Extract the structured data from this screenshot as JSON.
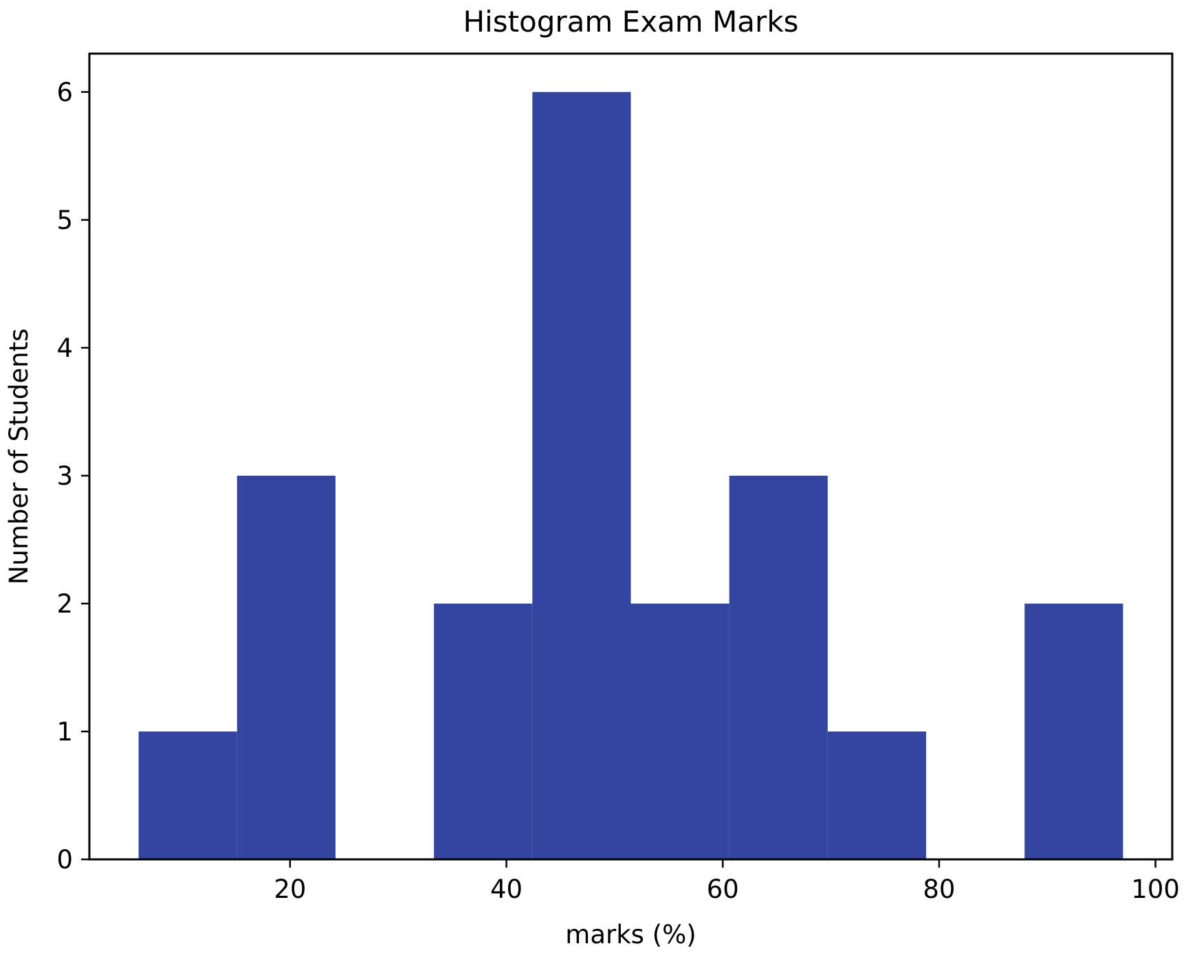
{
  "chart_data": {
    "type": "bar",
    "subtype": "histogram",
    "title": "Histogram Exam Marks",
    "xlabel": "marks (%)",
    "ylabel": "Number of Students",
    "bins": [
      {
        "start": 6.0,
        "end": 15.1,
        "count": 1
      },
      {
        "start": 15.1,
        "end": 24.2,
        "count": 3
      },
      {
        "start": 24.2,
        "end": 33.3,
        "count": 0
      },
      {
        "start": 33.3,
        "end": 42.4,
        "count": 2
      },
      {
        "start": 42.4,
        "end": 51.5,
        "count": 6
      },
      {
        "start": 51.5,
        "end": 60.6,
        "count": 2
      },
      {
        "start": 60.6,
        "end": 69.7,
        "count": 3
      },
      {
        "start": 69.7,
        "end": 78.8,
        "count": 1
      },
      {
        "start": 78.8,
        "end": 87.9,
        "count": 0
      },
      {
        "start": 87.9,
        "end": 97.0,
        "count": 2
      }
    ],
    "xlim": [
      1.45,
      101.55
    ],
    "ylim": [
      0,
      6.3
    ],
    "xticks": [
      20,
      40,
      60,
      80,
      100
    ],
    "yticks": [
      0,
      1,
      2,
      3,
      4,
      5,
      6
    ],
    "bar_color": "#3246a0",
    "grid": false,
    "legend": null
  }
}
